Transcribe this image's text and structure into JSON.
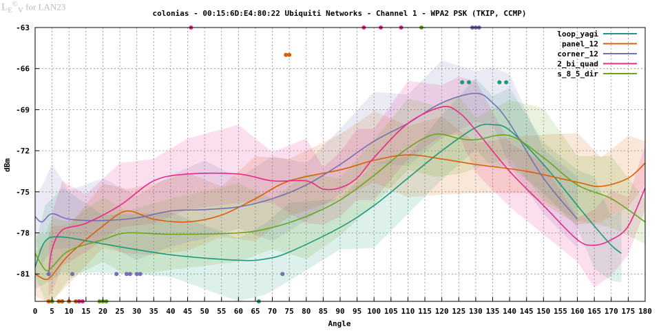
{
  "logo_text": "LEV© for LAN23",
  "chart_data": {
    "type": "line",
    "title": "colonias - 00:15:6D:E4:80:22 Ubiquiti Networks - Channel 1 - WPA2 PSK (TKIP, CCMP)",
    "xlabel": "Angle",
    "ylabel": "dBm",
    "xlim": [
      0,
      180
    ],
    "ylim": [
      -83,
      -63
    ],
    "xticks": [
      0,
      5,
      10,
      15,
      20,
      25,
      30,
      35,
      40,
      45,
      50,
      55,
      60,
      65,
      70,
      75,
      80,
      85,
      90,
      95,
      100,
      105,
      110,
      115,
      120,
      125,
      130,
      135,
      140,
      145,
      150,
      155,
      160,
      165,
      170,
      175,
      180
    ],
    "yticks": [
      -63,
      -66,
      -69,
      -72,
      -75,
      -78,
      -81
    ],
    "grid": true,
    "legend_position": "top-right",
    "series": [
      {
        "name": "loop_yagi",
        "color": "#1a9a7a",
        "x": [
          0,
          3,
          8,
          20,
          40,
          60,
          68,
          75,
          90,
          100,
          110,
          120,
          130,
          135,
          140,
          150,
          160,
          165,
          170,
          173
        ],
        "y": [
          -80.5,
          -78.6,
          -78.3,
          -78.8,
          -79.6,
          -80.0,
          -79.9,
          -79.4,
          -77.6,
          -76.0,
          -74.0,
          -72.0,
          -70.3,
          -70.1,
          -70.5,
          -73.0,
          -76.0,
          -77.5,
          -78.9,
          -79.5
        ],
        "markers": [
          {
            "x": 126,
            "y": -67
          },
          {
            "x": 128,
            "y": -67
          },
          {
            "x": 137,
            "y": -67
          },
          {
            "x": 139,
            "y": -67
          },
          {
            "x": 66,
            "y": -83
          }
        ]
      },
      {
        "name": "panel_12",
        "color": "#d95f02",
        "x": [
          0,
          3,
          5,
          10,
          20,
          27,
          35,
          45,
          55,
          65,
          75,
          90,
          100,
          110,
          120,
          130,
          145,
          160,
          167,
          175,
          180
        ],
        "y": [
          -81.0,
          -81.4,
          -81.1,
          -79.6,
          -77.5,
          -76.4,
          -77.0,
          -77.2,
          -76.7,
          -75.5,
          -74.2,
          -73.4,
          -72.7,
          -72.3,
          -72.6,
          -73.0,
          -73.5,
          -74.3,
          -74.6,
          -74.0,
          -72.9
        ],
        "markers": [
          {
            "x": 74,
            "y": -65
          },
          {
            "x": 75,
            "y": -65
          },
          {
            "x": 4,
            "y": -83
          },
          {
            "x": 5,
            "y": -83
          },
          {
            "x": 7,
            "y": -83
          },
          {
            "x": 8,
            "y": -83
          },
          {
            "x": 10,
            "y": -83
          },
          {
            "x": 12,
            "y": -83
          },
          {
            "x": 13,
            "y": -83
          }
        ]
      },
      {
        "name": "corner_12",
        "color": "#7570b3",
        "x": [
          0,
          2,
          5,
          10,
          20,
          30,
          40,
          50,
          60,
          70,
          80,
          90,
          100,
          110,
          120,
          130,
          135,
          140,
          150,
          160
        ],
        "y": [
          -76.8,
          -77.2,
          -76.6,
          -77.0,
          -77.1,
          -76.9,
          -76.4,
          -76.3,
          -76.1,
          -75.5,
          -74.5,
          -73.0,
          -71.3,
          -70.0,
          -68.5,
          -67.8,
          -68.5,
          -70.0,
          -74.0,
          -77.0
        ],
        "markers": [
          {
            "x": 129,
            "y": -63
          },
          {
            "x": 130,
            "y": -63
          },
          {
            "x": 131,
            "y": -63
          },
          {
            "x": 4,
            "y": -81
          },
          {
            "x": 11,
            "y": -81
          },
          {
            "x": 24,
            "y": -81
          },
          {
            "x": 27,
            "y": -81
          },
          {
            "x": 28,
            "y": -81
          },
          {
            "x": 30,
            "y": -81
          },
          {
            "x": 31,
            "y": -81
          },
          {
            "x": 73,
            "y": -81
          }
        ]
      },
      {
        "name": "2_bi_quad",
        "color": "#e7298a",
        "x": [
          4,
          5,
          8,
          15,
          25,
          35,
          45,
          60,
          70,
          80,
          85,
          90,
          95,
          100,
          110,
          120,
          125,
          130,
          140,
          150,
          160,
          165,
          170,
          175,
          180
        ],
        "y": [
          -81.0,
          -79.2,
          -77.8,
          -77.3,
          -76.0,
          -74.2,
          -73.7,
          -73.7,
          -74.2,
          -74.2,
          -74.8,
          -74.7,
          -74.0,
          -72.5,
          -70.0,
          -68.8,
          -69.2,
          -70.5,
          -73.5,
          -76.0,
          -78.5,
          -78.9,
          -78.5,
          -77.5,
          -74.7
        ],
        "markers": [
          {
            "x": 46,
            "y": -63
          },
          {
            "x": 97,
            "y": -63
          },
          {
            "x": 102,
            "y": -63
          },
          {
            "x": 108,
            "y": -63
          },
          {
            "x": 13,
            "y": -83
          },
          {
            "x": 14,
            "y": -83
          }
        ]
      },
      {
        "name": "s_8_5_dir",
        "color": "#66a61e",
        "x": [
          0,
          3,
          5,
          10,
          20,
          27,
          40,
          60,
          70,
          80,
          90,
          100,
          110,
          118,
          125,
          130,
          140,
          150,
          160,
          170,
          180
        ],
        "y": [
          -79.5,
          -80.7,
          -80.5,
          -79.3,
          -78.5,
          -78.0,
          -78.1,
          -78.0,
          -77.6,
          -76.8,
          -75.6,
          -73.8,
          -71.8,
          -70.8,
          -71.1,
          -71.2,
          -70.9,
          -72.5,
          -74.5,
          -75.5,
          -77.2
        ],
        "markers": [
          {
            "x": 114,
            "y": -63
          },
          {
            "x": 5,
            "y": -83
          },
          {
            "x": 19,
            "y": -83
          },
          {
            "x": 20,
            "y": -83
          },
          {
            "x": 21,
            "y": -83
          }
        ]
      }
    ]
  }
}
